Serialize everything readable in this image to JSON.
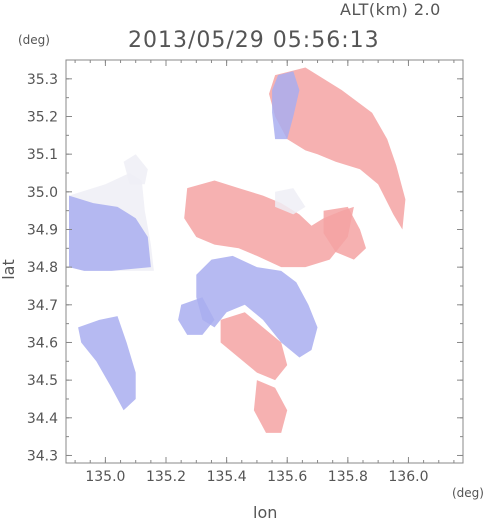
{
  "header": {
    "alt_label": "ALT(km) 2.0",
    "timestamp": "2013/05/29 05:56:13"
  },
  "chart_data": {
    "type": "heatmap",
    "title": "2013/05/29 05:56:13",
    "xlabel": "lon",
    "ylabel": "lat",
    "x_unit": "(deg)",
    "y_unit": "(deg)",
    "xlim": [
      134.87,
      136.18
    ],
    "ylim": [
      34.28,
      35.35
    ],
    "x_ticks": [
      135.0,
      135.2,
      135.4,
      135.6,
      135.8,
      136.0
    ],
    "x_tick_labels": [
      "135.0",
      "135.2",
      "135.4",
      "135.6",
      "135.8",
      "136.0"
    ],
    "y_ticks": [
      34.3,
      34.4,
      34.5,
      34.6,
      34.7,
      34.8,
      34.9,
      35.0,
      35.1,
      35.2,
      35.3
    ],
    "y_tick_labels": [
      "34.3",
      "34.4",
      "34.5",
      "34.6",
      "34.7",
      "34.8",
      "34.9",
      "35.0",
      "35.1",
      "35.2",
      "35.3"
    ],
    "grid": false,
    "colors": {
      "positive": "#f4a3a3",
      "negative": "#a9aef0",
      "neutral": "#eeeef6",
      "axis": "#888888"
    },
    "regions": [
      {
        "sign": "positive",
        "poly": [
          [
            135.56,
            35.31
          ],
          [
            135.66,
            35.33
          ],
          [
            135.78,
            35.27
          ],
          [
            135.88,
            35.21
          ],
          [
            135.93,
            35.14
          ],
          [
            135.96,
            35.07
          ],
          [
            135.99,
            34.98
          ],
          [
            135.98,
            34.9
          ],
          [
            135.95,
            34.94
          ],
          [
            135.9,
            35.02
          ],
          [
            135.84,
            35.06
          ],
          [
            135.76,
            35.08
          ],
          [
            135.7,
            35.1
          ],
          [
            135.66,
            35.11
          ],
          [
            135.6,
            35.14
          ],
          [
            135.56,
            35.2
          ],
          [
            135.54,
            35.26
          ]
        ]
      },
      {
        "sign": "negative",
        "poly": [
          [
            135.57,
            35.31
          ],
          [
            135.62,
            35.32
          ],
          [
            135.64,
            35.27
          ],
          [
            135.62,
            35.2
          ],
          [
            135.6,
            35.14
          ],
          [
            135.56,
            35.14
          ],
          [
            135.55,
            35.21
          ],
          [
            135.55,
            35.27
          ]
        ]
      },
      {
        "sign": "positive",
        "poly": [
          [
            135.27,
            35.01
          ],
          [
            135.36,
            35.03
          ],
          [
            135.44,
            35.01
          ],
          [
            135.52,
            34.99
          ],
          [
            135.58,
            34.97
          ],
          [
            135.64,
            34.94
          ],
          [
            135.68,
            34.91
          ],
          [
            135.72,
            34.93
          ],
          [
            135.78,
            34.95
          ],
          [
            135.82,
            34.96
          ],
          [
            135.8,
            34.88
          ],
          [
            135.74,
            34.82
          ],
          [
            135.66,
            34.8
          ],
          [
            135.58,
            34.8
          ],
          [
            135.5,
            34.83
          ],
          [
            135.44,
            34.85
          ],
          [
            135.36,
            34.86
          ],
          [
            135.3,
            34.88
          ],
          [
            135.26,
            34.93
          ]
        ]
      },
      {
        "sign": "positive",
        "poly": [
          [
            135.72,
            34.95
          ],
          [
            135.8,
            34.96
          ],
          [
            135.84,
            34.9
          ],
          [
            135.86,
            34.85
          ],
          [
            135.82,
            34.82
          ],
          [
            135.76,
            34.84
          ],
          [
            135.72,
            34.89
          ]
        ]
      },
      {
        "sign": "neutral",
        "poly": [
          [
            134.88,
            34.99
          ],
          [
            135.0,
            35.02
          ],
          [
            135.08,
            35.05
          ],
          [
            135.12,
            35.03
          ],
          [
            135.13,
            34.95
          ],
          [
            135.15,
            34.86
          ],
          [
            135.16,
            34.79
          ],
          [
            135.05,
            34.79
          ],
          [
            134.93,
            34.79
          ],
          [
            134.88,
            34.8
          ]
        ]
      },
      {
        "sign": "negative",
        "poly": [
          [
            134.88,
            34.99
          ],
          [
            134.96,
            34.97
          ],
          [
            135.04,
            34.96
          ],
          [
            135.1,
            34.93
          ],
          [
            135.14,
            34.88
          ],
          [
            135.15,
            34.8
          ],
          [
            135.02,
            34.79
          ],
          [
            134.93,
            34.79
          ],
          [
            134.88,
            34.8
          ]
        ]
      },
      {
        "sign": "neutral",
        "poly": [
          [
            135.06,
            35.08
          ],
          [
            135.1,
            35.1
          ],
          [
            135.14,
            35.06
          ],
          [
            135.13,
            35.02
          ],
          [
            135.08,
            35.02
          ]
        ]
      },
      {
        "sign": "negative",
        "poly": [
          [
            134.91,
            34.64
          ],
          [
            134.98,
            34.66
          ],
          [
            135.04,
            34.67
          ],
          [
            135.07,
            34.6
          ],
          [
            135.1,
            34.52
          ],
          [
            135.1,
            34.45
          ],
          [
            135.06,
            34.42
          ],
          [
            135.02,
            34.48
          ],
          [
            134.97,
            34.55
          ],
          [
            134.92,
            34.6
          ]
        ]
      },
      {
        "sign": "negative",
        "poly": [
          [
            135.35,
            34.82
          ],
          [
            135.42,
            34.83
          ],
          [
            135.5,
            34.8
          ],
          [
            135.58,
            34.79
          ],
          [
            135.63,
            34.76
          ],
          [
            135.67,
            34.7
          ],
          [
            135.7,
            34.64
          ],
          [
            135.68,
            34.58
          ],
          [
            135.64,
            34.56
          ],
          [
            135.58,
            34.6
          ],
          [
            135.52,
            34.66
          ],
          [
            135.46,
            34.7
          ],
          [
            135.4,
            34.68
          ],
          [
            135.36,
            34.64
          ],
          [
            135.32,
            34.66
          ],
          [
            135.3,
            34.72
          ],
          [
            135.3,
            34.78
          ]
        ]
      },
      {
        "sign": "negative",
        "poly": [
          [
            135.25,
            34.7
          ],
          [
            135.32,
            34.72
          ],
          [
            135.36,
            34.66
          ],
          [
            135.32,
            34.62
          ],
          [
            135.27,
            34.62
          ],
          [
            135.24,
            34.66
          ]
        ]
      },
      {
        "sign": "positive",
        "poly": [
          [
            135.38,
            34.66
          ],
          [
            135.46,
            34.68
          ],
          [
            135.52,
            34.64
          ],
          [
            135.58,
            34.6
          ],
          [
            135.6,
            34.54
          ],
          [
            135.56,
            34.5
          ],
          [
            135.5,
            34.52
          ],
          [
            135.44,
            34.56
          ],
          [
            135.38,
            34.6
          ]
        ]
      },
      {
        "sign": "positive",
        "poly": [
          [
            135.5,
            34.5
          ],
          [
            135.56,
            34.48
          ],
          [
            135.6,
            34.42
          ],
          [
            135.58,
            34.36
          ],
          [
            135.53,
            34.36
          ],
          [
            135.49,
            34.42
          ]
        ]
      },
      {
        "sign": "neutral",
        "poly": [
          [
            135.56,
            35.0
          ],
          [
            135.62,
            35.01
          ],
          [
            135.66,
            34.96
          ],
          [
            135.62,
            34.94
          ],
          [
            135.56,
            34.96
          ]
        ]
      }
    ]
  }
}
